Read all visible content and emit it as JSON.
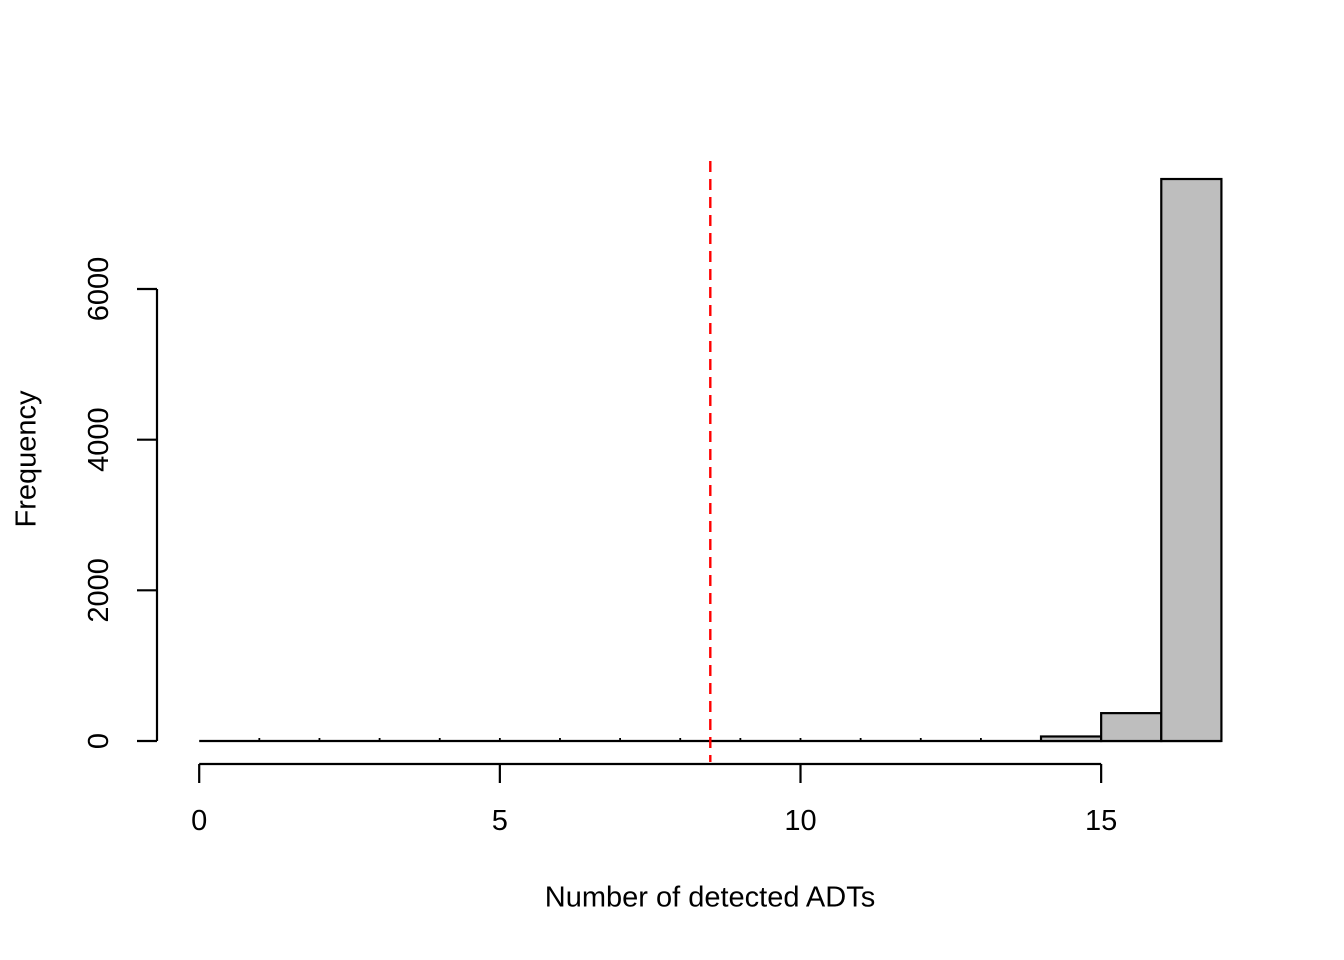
{
  "chart_data": {
    "type": "bar",
    "subtype": "histogram",
    "title": "",
    "xlabel": "Number of detected ADTs",
    "ylabel": "Frequency",
    "bin_edges": [
      0,
      1,
      2,
      3,
      4,
      5,
      6,
      7,
      8,
      9,
      10,
      11,
      12,
      13,
      14,
      15,
      16,
      17
    ],
    "counts": [
      0,
      0,
      0,
      0,
      0,
      0,
      0,
      0,
      0,
      0,
      0,
      0,
      0,
      10,
      60,
      370,
      7460
    ],
    "x_ticks": [
      0,
      5,
      10,
      15
    ],
    "y_ticks": [
      0,
      2000,
      4000,
      6000
    ],
    "xlim": [
      0,
      17
    ],
    "ylim": [
      0,
      7700
    ],
    "grid": false,
    "legend": null,
    "bar_fill": "#BEBEBE",
    "bar_stroke": "#000000",
    "axis_color": "#000000",
    "background": "#FFFFFF",
    "vline": {
      "x": 8.5,
      "color": "#FF0000",
      "style": "dashed"
    }
  }
}
